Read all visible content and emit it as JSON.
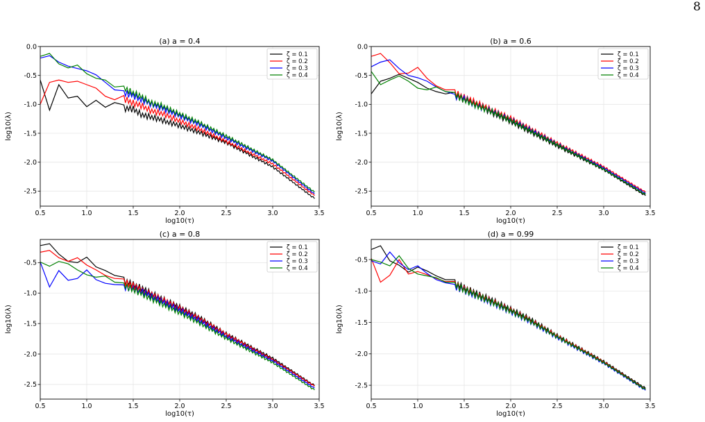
{
  "page": {
    "number": "8"
  },
  "colors": {
    "z1": "#000000",
    "z2": "#ff0000",
    "z3": "#0000ff",
    "z4": "#008000",
    "grid": "#e6e6e6"
  },
  "chart_data": [
    {
      "type": "line",
      "title": "(a)  a = 0.4",
      "xlabel": "log10(τ)",
      "ylabel": "log10(λ)",
      "xlim": [
        0.5,
        3.5
      ],
      "ylim": [
        -2.76,
        0.0
      ],
      "xticks": [
        "0.5",
        "1.0",
        "1.5",
        "2.0",
        "2.5",
        "3.0",
        "3.5"
      ],
      "yticks": [
        "0.0",
        "-0.5",
        "-1.0",
        "-1.5",
        "-2.0",
        "-2.5"
      ],
      "grid": true,
      "legend": "top-right",
      "series": [
        {
          "name": "ζ = 0.1",
          "x": [
            0.5,
            0.6,
            0.7,
            0.8,
            0.9,
            1.0,
            1.1,
            1.2,
            1.3,
            1.4,
            1.5,
            1.6,
            1.7,
            1.8,
            2.0,
            2.2,
            2.5,
            3.0,
            3.45
          ],
          "y": [
            -0.58,
            -1.1,
            -0.66,
            -0.89,
            -0.86,
            -1.04,
            -0.93,
            -1.05,
            -0.97,
            -1.07,
            -1.08,
            -1.19,
            -1.22,
            -1.27,
            -1.37,
            -1.48,
            -1.66,
            -2.08,
            -2.63
          ]
        },
        {
          "name": "ζ = 0.2",
          "x": [
            0.5,
            0.6,
            0.7,
            0.8,
            0.9,
            1.0,
            1.1,
            1.2,
            1.3,
            1.4,
            1.5,
            1.6,
            1.7,
            1.8,
            2.0,
            2.2,
            2.5,
            3.0,
            3.45
          ],
          "y": [
            -1.0,
            -0.62,
            -0.58,
            -0.62,
            -0.6,
            -0.66,
            -0.72,
            -0.86,
            -0.92,
            -0.9,
            -0.98,
            -1.03,
            -1.12,
            -1.15,
            -1.29,
            -1.42,
            -1.64,
            -2.03,
            -2.58
          ]
        },
        {
          "name": "ζ = 0.3",
          "x": [
            0.5,
            0.6,
            0.7,
            0.8,
            0.9,
            1.0,
            1.1,
            1.2,
            1.3,
            1.4,
            1.5,
            1.6,
            1.7,
            1.8,
            2.0,
            2.2,
            2.5,
            3.0,
            3.45
          ],
          "y": [
            -0.2,
            -0.16,
            -0.27,
            -0.34,
            -0.38,
            -0.42,
            -0.49,
            -0.62,
            -0.75,
            -0.8,
            -0.85,
            -0.93,
            -1.0,
            -1.06,
            -1.2,
            -1.34,
            -1.58,
            -1.98,
            -2.55
          ]
        },
        {
          "name": "ζ = 0.4",
          "x": [
            0.5,
            0.6,
            0.7,
            0.8,
            0.9,
            1.0,
            1.1,
            1.2,
            1.3,
            1.4,
            1.5,
            1.6,
            1.7,
            1.8,
            2.0,
            2.2,
            2.5,
            3.0,
            3.45
          ],
          "y": [
            -0.17,
            -0.12,
            -0.3,
            -0.37,
            -0.32,
            -0.47,
            -0.55,
            -0.58,
            -0.7,
            -0.73,
            -0.8,
            -0.88,
            -0.98,
            -1.02,
            -1.17,
            -1.31,
            -1.55,
            -1.96,
            -2.52
          ]
        }
      ]
    },
    {
      "type": "line",
      "title": "(b)  a = 0.6",
      "xlabel": "log10(τ)",
      "ylabel": "log10(λ)",
      "xlim": [
        0.5,
        3.5
      ],
      "ylim": [
        -2.76,
        0.0
      ],
      "xticks": [
        "0.5",
        "1.0",
        "1.5",
        "2.0",
        "2.5",
        "3.0",
        "3.5"
      ],
      "yticks": [
        "0.0",
        "-0.5",
        "-1.0",
        "-1.5",
        "-2.0",
        "-2.5"
      ],
      "grid": true,
      "legend": "top-right",
      "series": [
        {
          "name": "ζ = 0.1",
          "x": [
            0.5,
            0.6,
            0.7,
            0.8,
            0.9,
            1.0,
            1.1,
            1.2,
            1.3,
            1.4,
            1.5,
            1.6,
            1.8,
            2.0,
            2.2,
            2.5,
            3.0,
            3.45
          ],
          "y": [
            -0.82,
            -0.6,
            -0.55,
            -0.48,
            -0.55,
            -0.62,
            -0.72,
            -0.78,
            -0.82,
            -0.85,
            -0.92,
            -0.98,
            -1.15,
            -1.3,
            -1.47,
            -1.72,
            -2.13,
            -2.58
          ]
        },
        {
          "name": "ζ = 0.2",
          "x": [
            0.5,
            0.6,
            0.7,
            0.8,
            0.9,
            1.0,
            1.1,
            1.2,
            1.3,
            1.4,
            1.5,
            1.6,
            1.8,
            2.0,
            2.2,
            2.5,
            3.0,
            3.45
          ],
          "y": [
            -0.17,
            -0.12,
            -0.28,
            -0.47,
            -0.46,
            -0.36,
            -0.55,
            -0.68,
            -0.75,
            -0.8,
            -0.88,
            -0.95,
            -1.1,
            -1.24,
            -1.41,
            -1.67,
            -2.08,
            -2.52
          ]
        },
        {
          "name": "ζ = 0.3",
          "x": [
            0.5,
            0.6,
            0.7,
            0.8,
            0.9,
            1.0,
            1.1,
            1.2,
            1.3,
            1.4,
            1.5,
            1.6,
            1.8,
            2.0,
            2.2,
            2.5,
            3.0,
            3.45
          ],
          "y": [
            -0.35,
            -0.27,
            -0.23,
            -0.38,
            -0.5,
            -0.54,
            -0.6,
            -0.7,
            -0.78,
            -0.86,
            -0.9,
            -1.0,
            -1.12,
            -1.27,
            -1.43,
            -1.69,
            -2.1,
            -2.54
          ]
        },
        {
          "name": "ζ = 0.4",
          "x": [
            0.5,
            0.6,
            0.7,
            0.8,
            0.9,
            1.0,
            1.1,
            1.2,
            1.3,
            1.4,
            1.5,
            1.6,
            1.8,
            2.0,
            2.2,
            2.5,
            3.0,
            3.45
          ],
          "y": [
            -0.43,
            -0.66,
            -0.58,
            -0.51,
            -0.6,
            -0.72,
            -0.75,
            -0.7,
            -0.78,
            -0.84,
            -0.92,
            -1.0,
            -1.13,
            -1.28,
            -1.45,
            -1.7,
            -2.12,
            -2.56
          ]
        }
      ]
    },
    {
      "type": "line",
      "title": "(c)  a = 0.8",
      "xlabel": "log10(τ)",
      "ylabel": "log10(λ)",
      "xlim": [
        0.5,
        3.5
      ],
      "ylim": [
        -2.74,
        -0.12
      ],
      "xticks": [
        "0.5",
        "1.0",
        "1.5",
        "2.0",
        "2.5",
        "3.0",
        "3.5"
      ],
      "yticks": [
        "-0.5",
        "-1.0",
        "-1.5",
        "-2.0",
        "-2.5"
      ],
      "grid": true,
      "legend": "top-right",
      "series": [
        {
          "name": "ζ = 0.1",
          "x": [
            0.5,
            0.6,
            0.7,
            0.8,
            0.9,
            1.0,
            1.1,
            1.2,
            1.3,
            1.4,
            1.5,
            1.6,
            1.8,
            2.0,
            2.2,
            2.5,
            3.0,
            3.45
          ],
          "y": [
            -0.22,
            -0.19,
            -0.36,
            -0.48,
            -0.5,
            -0.41,
            -0.57,
            -0.63,
            -0.71,
            -0.8,
            -0.86,
            -0.93,
            -1.09,
            -1.23,
            -1.39,
            -1.67,
            -2.07,
            -2.52
          ]
        },
        {
          "name": "ζ = 0.2",
          "x": [
            0.5,
            0.6,
            0.7,
            0.8,
            0.9,
            1.0,
            1.1,
            1.2,
            1.3,
            1.4,
            1.5,
            1.6,
            1.8,
            2.0,
            2.2,
            2.5,
            3.0,
            3.45
          ],
          "y": [
            -0.33,
            -0.3,
            -0.42,
            -0.48,
            -0.42,
            -0.54,
            -0.62,
            -0.71,
            -0.76,
            -0.82,
            -0.88,
            -0.96,
            -1.1,
            -1.25,
            -1.41,
            -1.68,
            -2.09,
            -2.53
          ]
        },
        {
          "name": "ζ = 0.3",
          "x": [
            0.5,
            0.6,
            0.7,
            0.8,
            0.9,
            1.0,
            1.1,
            1.2,
            1.3,
            1.4,
            1.5,
            1.6,
            1.8,
            2.0,
            2.2,
            2.5,
            3.0,
            3.45
          ],
          "y": [
            -0.49,
            -0.9,
            -0.63,
            -0.79,
            -0.76,
            -0.62,
            -0.78,
            -0.84,
            -0.86,
            -0.9,
            -0.93,
            -0.98,
            -1.13,
            -1.28,
            -1.44,
            -1.71,
            -2.11,
            -2.56
          ]
        },
        {
          "name": "ζ = 0.4",
          "x": [
            0.5,
            0.6,
            0.7,
            0.8,
            0.9,
            1.0,
            1.1,
            1.2,
            1.3,
            1.4,
            1.5,
            1.6,
            1.8,
            2.0,
            2.2,
            2.5,
            3.0,
            3.45
          ],
          "y": [
            -0.49,
            -0.56,
            -0.48,
            -0.52,
            -0.62,
            -0.7,
            -0.74,
            -0.72,
            -0.82,
            -0.88,
            -0.94,
            -1.02,
            -1.17,
            -1.32,
            -1.48,
            -1.74,
            -2.14,
            -2.59
          ]
        }
      ]
    },
    {
      "type": "line",
      "title": "(d)  a = 0.99",
      "xlabel": "log10(τ)",
      "ylabel": "log10(λ)",
      "xlim": [
        0.5,
        3.5
      ],
      "ylim": [
        -2.72,
        -0.18
      ],
      "xticks": [
        "0.5",
        "1.0",
        "1.5",
        "2.0",
        "2.5",
        "3.0",
        "3.5"
      ],
      "yticks": [
        "-0.5",
        "-1.0",
        "-1.5",
        "-2.0",
        "-2.5"
      ],
      "grid": true,
      "legend": "top-right",
      "series": [
        {
          "name": "ζ = 0.1",
          "x": [
            0.5,
            0.6,
            0.7,
            0.8,
            0.9,
            1.0,
            1.1,
            1.2,
            1.3,
            1.4,
            1.5,
            1.6,
            1.8,
            2.0,
            2.2,
            2.5,
            3.0,
            3.45
          ],
          "y": [
            -0.34,
            -0.28,
            -0.52,
            -0.59,
            -0.7,
            -0.62,
            -0.68,
            -0.76,
            -0.82,
            -0.88,
            -0.95,
            -1.02,
            -1.15,
            -1.29,
            -1.44,
            -1.71,
            -2.12,
            -2.55
          ]
        },
        {
          "name": "ζ = 0.2",
          "x": [
            0.5,
            0.6,
            0.7,
            0.8,
            0.9,
            1.0,
            1.1,
            1.2,
            1.3,
            1.4,
            1.5,
            1.6,
            1.8,
            2.0,
            2.2,
            2.5,
            3.0,
            3.45
          ],
          "y": [
            -0.48,
            -0.86,
            -0.75,
            -0.5,
            -0.73,
            -0.69,
            -0.74,
            -0.8,
            -0.85,
            -0.9,
            -0.97,
            -1.04,
            -1.17,
            -1.31,
            -1.46,
            -1.72,
            -2.13,
            -2.57
          ]
        },
        {
          "name": "ζ = 0.3",
          "x": [
            0.5,
            0.6,
            0.7,
            0.8,
            0.9,
            1.0,
            1.1,
            1.2,
            1.3,
            1.4,
            1.5,
            1.6,
            1.8,
            2.0,
            2.2,
            2.5,
            3.0,
            3.45
          ],
          "y": [
            -0.52,
            -0.57,
            -0.38,
            -0.55,
            -0.66,
            -0.6,
            -0.72,
            -0.82,
            -0.87,
            -0.93,
            -0.99,
            -1.06,
            -1.19,
            -1.33,
            -1.48,
            -1.74,
            -2.15,
            -2.58
          ]
        },
        {
          "name": "ζ = 0.4",
          "x": [
            0.5,
            0.6,
            0.7,
            0.8,
            0.9,
            1.0,
            1.1,
            1.2,
            1.3,
            1.4,
            1.5,
            1.6,
            1.8,
            2.0,
            2.2,
            2.5,
            3.0,
            3.45
          ],
          "y": [
            -0.5,
            -0.54,
            -0.6,
            -0.44,
            -0.64,
            -0.73,
            -0.76,
            -0.79,
            -0.86,
            -0.91,
            -0.98,
            -1.05,
            -1.18,
            -1.32,
            -1.47,
            -1.73,
            -2.14,
            -2.57
          ]
        }
      ]
    }
  ]
}
